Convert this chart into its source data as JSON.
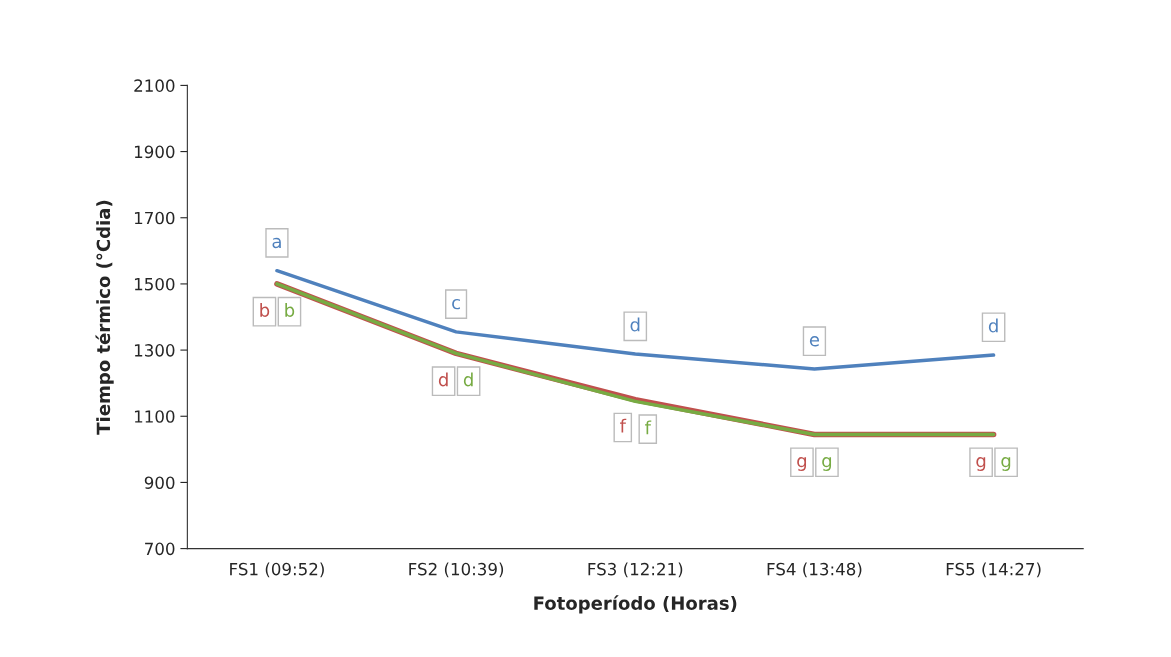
{
  "chart_data": {
    "type": "line",
    "xlabel": "Fotoperíodo (Horas)",
    "ylabel": "Tiempo térmico (°Cdia)",
    "categories": [
      "FS1 (09:52)",
      "FS2 (10:39)",
      "FS3 (12:21)",
      "FS4 (13:48)",
      "FS5 (14:27)"
    ],
    "series": [
      {
        "color": "#4f81bd",
        "values": [
          1540,
          1355,
          1288,
          1243,
          1285
        ],
        "value_labels": [
          "a",
          "c",
          "d",
          "e",
          "d"
        ]
      },
      {
        "color": "#c0504d",
        "values": [
          1500,
          1290,
          1150,
          1045,
          1045
        ],
        "value_labels": [
          "b",
          "d",
          "f",
          "g",
          "g"
        ]
      },
      {
        "color": "#77ab43",
        "values": [
          1500,
          1290,
          1145,
          1045,
          1045
        ],
        "value_labels": [
          "b",
          "d",
          "f",
          "g",
          "g"
        ]
      }
    ],
    "ylim": [
      700,
      2100
    ],
    "yticks": [
      700,
      900,
      1100,
      1300,
      1500,
      1700,
      1900,
      2100
    ],
    "grid": false,
    "marker": "none",
    "line_style": "solid"
  }
}
